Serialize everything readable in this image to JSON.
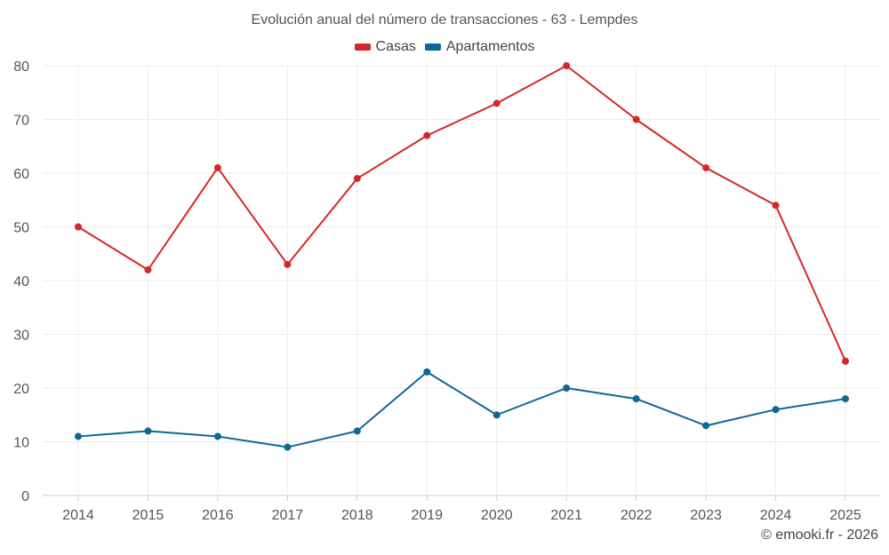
{
  "chart_data": {
    "type": "line",
    "title": "Evolución anual del número de transacciones - 63 - Lempdes",
    "categories": [
      "2014",
      "2015",
      "2016",
      "2017",
      "2018",
      "2019",
      "2020",
      "2021",
      "2022",
      "2023",
      "2024",
      "2025"
    ],
    "series": [
      {
        "name": "Casas",
        "color": "#d62728",
        "values": [
          50,
          42,
          61,
          43,
          59,
          67,
          73,
          80,
          70,
          61,
          54,
          25
        ]
      },
      {
        "name": "Apartamentos",
        "color": "#0e6797",
        "values": [
          11,
          12,
          11,
          9,
          12,
          23,
          15,
          20,
          18,
          13,
          16,
          18
        ]
      }
    ],
    "yticks": [
      0,
      10,
      20,
      30,
      40,
      50,
      60,
      70,
      80
    ],
    "ylim": [
      0,
      80
    ],
    "xlabel": "",
    "ylabel": "",
    "grid": true,
    "legend_position": "top-center"
  },
  "footer": {
    "credit": "© emooki.fr - 2026"
  }
}
